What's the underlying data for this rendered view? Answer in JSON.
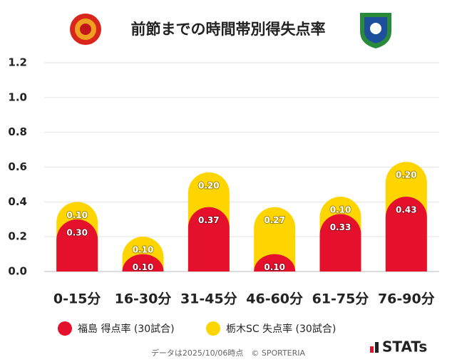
{
  "chart_data": {
    "type": "stacked-bar",
    "title": "前節までの時間帯別得失点率",
    "categories": [
      "0-15分",
      "16-30分",
      "31-45分",
      "46-60分",
      "61-75分",
      "76-90分"
    ],
    "series": [
      {
        "name": "福島 得点率 (30試合)",
        "color": "#e5102c",
        "values": [
          0.3,
          0.1,
          0.37,
          0.1,
          0.33,
          0.43
        ],
        "value_labels": [
          "0.30",
          "0.10",
          "0.37",
          "0.10",
          "0.33",
          "0.43"
        ]
      },
      {
        "name": "栃木SC 失点率 (30試合)",
        "color": "#ffd500",
        "values": [
          0.1,
          0.1,
          0.2,
          0.27,
          0.1,
          0.2
        ],
        "value_labels": [
          "0.10",
          "0.10",
          "0.20",
          "0.27",
          "0.10",
          "0.20"
        ]
      }
    ],
    "ylim": [
      0,
      1.2
    ],
    "yticks": [
      {
        "value": 0,
        "label": "0.0"
      },
      0.2,
      0.4,
      0.6,
      0.8,
      {
        "value": 1,
        "label": "1.0"
      },
      1.2
    ],
    "grid": true,
    "footnote": "データは2025/10/06時点　© SPORTERIA",
    "logo_text": "STATs"
  }
}
